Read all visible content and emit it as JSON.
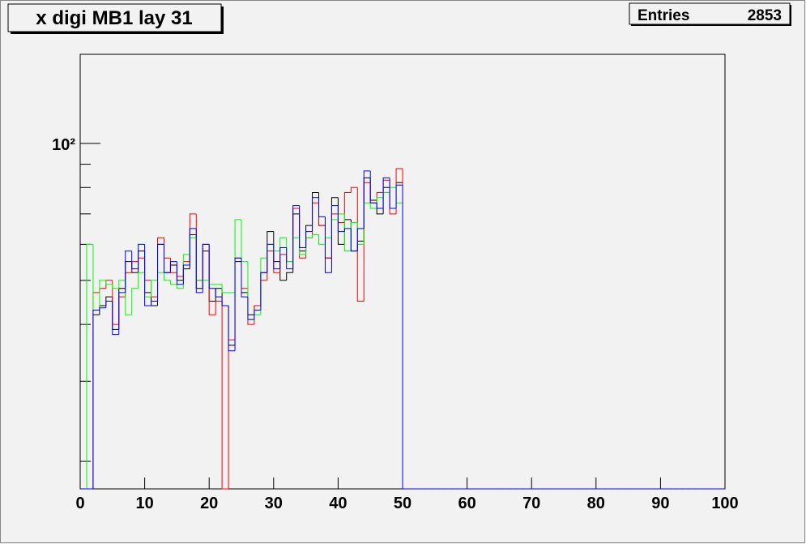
{
  "chart_data": {
    "type": "histogram",
    "title": "x digi MB1 lay 31",
    "stats": {
      "label": "Entries",
      "value": 2853
    },
    "bins": [
      0,
      1,
      2,
      3,
      4,
      5,
      6,
      7,
      8,
      9,
      10,
      11,
      12,
      13,
      14,
      15,
      16,
      17,
      18,
      19,
      20,
      21,
      22,
      23,
      24,
      25,
      26,
      27,
      28,
      29,
      30,
      31,
      32,
      33,
      34,
      35,
      36,
      37,
      38,
      39,
      40,
      41,
      42,
      43,
      44,
      45,
      46,
      47,
      48,
      49,
      50,
      51,
      52,
      53,
      54,
      55,
      56,
      57,
      58,
      59,
      60,
      61,
      62,
      63,
      64,
      65,
      66,
      67,
      68,
      69,
      70,
      71,
      72,
      73,
      74,
      75,
      76,
      77,
      78,
      79,
      80,
      81,
      82,
      83,
      84,
      85,
      86,
      87,
      88,
      89,
      90,
      91,
      92,
      93,
      94,
      95,
      96,
      97,
      98,
      99,
      100
    ],
    "series": [
      {
        "color": "#000000",
        "values": [
          0,
          0,
          42,
          44,
          46,
          39,
          48,
          55,
          52,
          58,
          47,
          44,
          60,
          52,
          54,
          50,
          53,
          63,
          48,
          58,
          45,
          48,
          44,
          36,
          55,
          47,
          42,
          44,
          52,
          64,
          55,
          50,
          52,
          70,
          58,
          66,
          78,
          66,
          56,
          76,
          60,
          68,
          58,
          61,
          84,
          75,
          70,
          80,
          72,
          82,
          0,
          0,
          0,
          0,
          0,
          0,
          0,
          0,
          0,
          0,
          0,
          0,
          0,
          0,
          0,
          0,
          0,
          0,
          0,
          0,
          0,
          0,
          0,
          0,
          0,
          0,
          0,
          0,
          0,
          0,
          0,
          0,
          0,
          0,
          0,
          0,
          0,
          0,
          0,
          0,
          0,
          0,
          0,
          0,
          0,
          0,
          0,
          0,
          0,
          0
        ]
      },
      {
        "color": "#ff0000",
        "values": [
          0,
          0,
          47,
          48,
          50,
          40,
          46,
          52,
          55,
          56,
          50,
          46,
          62,
          56,
          52,
          51,
          55,
          70,
          50,
          60,
          42,
          45,
          0,
          37,
          56,
          48,
          40,
          44,
          50,
          58,
          52,
          57,
          55,
          72,
          56,
          62,
          74,
          66,
          56,
          70,
          67,
          78,
          80,
          45,
          82,
          74,
          78,
          83,
          70,
          88,
          0,
          0,
          0,
          0,
          0,
          0,
          0,
          0,
          0,
          0,
          0,
          0,
          0,
          0,
          0,
          0,
          0,
          0,
          0,
          0,
          0,
          0,
          0,
          0,
          0,
          0,
          0,
          0,
          0,
          0,
          0,
          0,
          0,
          0,
          0,
          0,
          0,
          0,
          0,
          0,
          0,
          0,
          0,
          0,
          0,
          0,
          0,
          0,
          0,
          0
        ]
      },
      {
        "color": "#00ff00",
        "values": [
          0,
          60,
          43,
          50,
          49,
          48,
          50,
          42,
          48,
          52,
          46,
          50,
          52,
          50,
          49,
          48,
          57,
          62,
          50,
          50,
          49,
          49,
          47,
          47,
          68,
          55,
          41,
          42,
          56,
          60,
          58,
          62,
          55,
          62,
          57,
          62,
          63,
          60,
          62,
          68,
          70,
          58,
          67,
          60,
          74,
          72,
          76,
          78,
          80,
          74,
          0,
          0,
          0,
          0,
          0,
          0,
          0,
          0,
          0,
          0,
          0,
          0,
          0,
          0,
          0,
          0,
          0,
          0,
          0,
          0,
          0,
          0,
          0,
          0,
          0,
          0,
          0,
          0,
          0,
          0,
          0,
          0,
          0,
          0,
          0,
          0,
          0,
          0,
          0,
          0,
          0,
          0,
          0,
          0,
          0,
          0,
          0,
          0,
          0,
          0
        ]
      },
      {
        "color": "#0000ff",
        "values": [
          0,
          0,
          43,
          43.5,
          45,
          38,
          47,
          58,
          53,
          60,
          44,
          45,
          60,
          52,
          55,
          49,
          54,
          65,
          47,
          60,
          48,
          46,
          44,
          35,
          56,
          46,
          41,
          43,
          52,
          60,
          53,
          59,
          53,
          73,
          59,
          64,
          76,
          69,
          52,
          73,
          64,
          65,
          58,
          65,
          87,
          74,
          72,
          84,
          72,
          81,
          0,
          0,
          0,
          0,
          0,
          0,
          0,
          0,
          0,
          0,
          0,
          0,
          0,
          0,
          0,
          0,
          0,
          0,
          0,
          0,
          0,
          0,
          0,
          0,
          0,
          0,
          0,
          0,
          0,
          0,
          0,
          0,
          0,
          0,
          0,
          0,
          0,
          0,
          0,
          0,
          0,
          0,
          0,
          0,
          0,
          0,
          0,
          0,
          0,
          0
        ]
      }
    ],
    "xlim": [
      0,
      100
    ],
    "xticks": [
      0,
      10,
      20,
      30,
      40,
      50,
      60,
      70,
      80,
      90,
      100
    ],
    "ylim": [
      17.4,
      157
    ],
    "log_y": true,
    "yticks": [
      {
        "value": 100,
        "label": "10²"
      }
    ],
    "minor_yticks": [
      20,
      30,
      40,
      50,
      60,
      70,
      80,
      90
    ]
  }
}
